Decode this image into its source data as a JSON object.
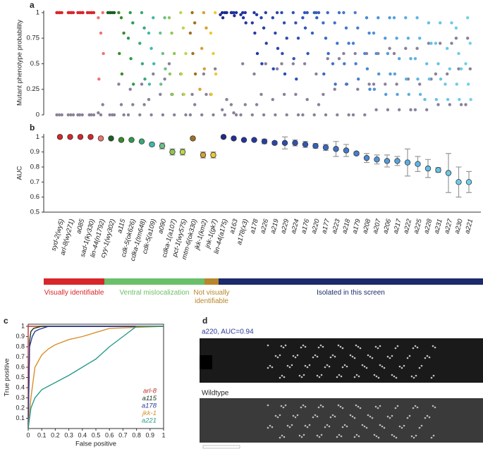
{
  "chart_data": [
    {
      "type": "strip",
      "label": "a",
      "ylabel": "Mutant phenotype probability",
      "ylim": [
        0,
        1.02
      ],
      "yticks": [
        0,
        0.25,
        0.5,
        0.75,
        1
      ],
      "wildtype_color": "#8a809a",
      "points": [
        {
          "mutant": [
            1,
            1,
            1,
            1,
            1
          ],
          "wildtype": [
            0,
            0,
            0
          ]
        },
        {
          "mutant": [
            1,
            1,
            1,
            1,
            1
          ],
          "wildtype": [
            0,
            0,
            0
          ]
        },
        {
          "mutant": [
            1,
            1,
            1,
            1,
            1
          ],
          "wildtype": [
            0,
            0,
            0
          ]
        },
        {
          "mutant": [
            1,
            1,
            1,
            1,
            1
          ],
          "wildtype": [
            0,
            0,
            0
          ]
        },
        {
          "mutant": [
            1,
            0.95,
            0.8,
            0.6,
            0.35
          ],
          "wildtype": [
            0.1,
            0.02,
            0
          ]
        },
        {
          "mutant": [
            1,
            1,
            1,
            1,
            1
          ],
          "wildtype": [
            0,
            0,
            0
          ]
        },
        {
          "mutant": [
            1,
            0.95,
            0.8,
            0.6,
            0.4
          ],
          "wildtype": [
            0.3,
            0.1,
            0
          ]
        },
        {
          "mutant": [
            1,
            0.9,
            0.75,
            0.55,
            0.3
          ],
          "wildtype": [
            0.25,
            0.1,
            0
          ]
        },
        {
          "mutant": [
            1,
            0.85,
            0.7,
            0.5,
            0.35
          ],
          "wildtype": [
            0.3,
            0.1,
            0
          ]
        },
        {
          "mutant": [
            0.95,
            0.8,
            0.65,
            0.5,
            0.3
          ],
          "wildtype": [
            0.4,
            0.15,
            0
          ]
        },
        {
          "mutant": [
            0.95,
            0.8,
            0.6,
            0.45,
            0.3
          ],
          "wildtype": [
            0.35,
            0.2,
            0
          ]
        },
        {
          "mutant": [
            0.95,
            0.8,
            0.6,
            0.4,
            0.2
          ],
          "wildtype": [
            0.5,
            0.2,
            0
          ]
        },
        {
          "mutant": [
            1,
            0.85,
            0.6,
            0.4,
            0.2
          ],
          "wildtype": [
            0.4,
            0.2,
            0
          ]
        },
        {
          "mutant": [
            1,
            0.9,
            0.8,
            0.6,
            0.4
          ],
          "wildtype": [
            0.2,
            0.1,
            0
          ]
        },
        {
          "mutant": [
            1,
            0.85,
            0.65,
            0.45,
            0.25
          ],
          "wildtype": [
            0.4,
            0.2,
            0
          ]
        },
        {
          "mutant": [
            1,
            0.8,
            0.6,
            0.4,
            0.2
          ],
          "wildtype": [
            0.45,
            0.2,
            0
          ]
        },
        {
          "mutant": [
            1,
            1,
            1,
            0.98,
            0.95
          ],
          "wildtype": [
            0.15,
            0.05,
            0
          ]
        },
        {
          "mutant": [
            1,
            1,
            1,
            1,
            0.97
          ],
          "wildtype": [
            0.1,
            0.02,
            0
          ]
        },
        {
          "mutant": [
            1,
            1,
            0.98,
            0.95,
            0.9
          ],
          "wildtype": [
            0.5,
            0.1,
            0
          ]
        },
        {
          "mutant": [
            1,
            0.98,
            0.9,
            0.8,
            0.6
          ],
          "wildtype": [
            0.4,
            0.1,
            0
          ]
        },
        {
          "mutant": [
            1,
            0.95,
            0.85,
            0.7,
            0.5
          ],
          "wildtype": [
            0.5,
            0.2,
            0
          ]
        },
        {
          "mutant": [
            1,
            0.95,
            0.8,
            0.65,
            0.45
          ],
          "wildtype": [
            0.45,
            0.15,
            0
          ]
        },
        {
          "mutant": [
            1,
            0.9,
            0.75,
            0.6,
            0.4
          ],
          "wildtype": [
            0.5,
            0.2,
            0
          ]
        },
        {
          "mutant": [
            1,
            0.9,
            0.75,
            0.55,
            0.35
          ],
          "wildtype": [
            0.5,
            0.2,
            0
          ]
        },
        {
          "mutant": [
            1,
            1,
            0.95,
            0.85,
            0.6
          ],
          "wildtype": [
            0.5,
            0.15,
            0
          ]
        },
        {
          "mutant": [
            1,
            1,
            1,
            0.95,
            0.8
          ],
          "wildtype": [
            0.4,
            0.1,
            0
          ]
        },
        {
          "mutant": [
            1,
            0.9,
            0.75,
            0.6,
            0.4
          ],
          "wildtype": [
            0.55,
            0.2,
            0
          ]
        },
        {
          "mutant": [
            1,
            0.9,
            0.7,
            0.5,
            0.3
          ],
          "wildtype": [
            0.55,
            0.25,
            0
          ]
        },
        {
          "mutant": [
            1,
            0.85,
            0.7,
            0.5,
            0.3
          ],
          "wildtype": [
            0.6,
            0.3,
            0
          ]
        },
        {
          "mutant": [
            1,
            0.85,
            0.7,
            0.5,
            0.35
          ],
          "wildtype": [
            0.6,
            0.25,
            0
          ]
        },
        {
          "mutant": [
            0.95,
            0.8,
            0.6,
            0.45,
            0.25
          ],
          "wildtype": [
            0.6,
            0.3,
            0
          ]
        },
        {
          "mutant": [
            0.95,
            0.8,
            0.6,
            0.4,
            0.25
          ],
          "wildtype": [
            0.6,
            0.3,
            0.05
          ]
        },
        {
          "mutant": [
            0.95,
            0.75,
            0.6,
            0.4,
            0.2
          ],
          "wildtype": [
            0.65,
            0.3,
            0.05
          ]
        },
        {
          "mutant": [
            0.95,
            0.75,
            0.55,
            0.4,
            0.2
          ],
          "wildtype": [
            0.6,
            0.3,
            0.05
          ]
        },
        {
          "mutant": [
            0.95,
            0.75,
            0.55,
            0.35,
            0.2
          ],
          "wildtype": [
            0.65,
            0.35,
            0.05
          ]
        },
        {
          "mutant": [
            0.95,
            0.75,
            0.55,
            0.35,
            0.2
          ],
          "wildtype": [
            0.65,
            0.3,
            0.05
          ]
        },
        {
          "mutant": [
            0.9,
            0.7,
            0.5,
            0.35,
            0.15
          ],
          "wildtype": [
            0.7,
            0.35,
            0.05
          ]
        },
        {
          "mutant": [
            0.9,
            0.7,
            0.5,
            0.35,
            0.15
          ],
          "wildtype": [
            0.7,
            0.4,
            0.1
          ]
        },
        {
          "mutant": [
            0.9,
            0.65,
            0.45,
            0.3,
            0.15
          ],
          "wildtype": [
            0.7,
            0.4,
            0.1
          ]
        },
        {
          "mutant": [
            0.85,
            0.6,
            0.45,
            0.3,
            0.15
          ],
          "wildtype": [
            0.75,
            0.45,
            0.1
          ]
        },
        {
          "mutant": [
            0.95,
            0.7,
            0.5,
            0.3,
            0.15
          ],
          "wildtype": [
            0.75,
            0.45,
            0.1
          ]
        }
      ]
    },
    {
      "type": "dot",
      "label": "b",
      "ylabel": "AUC",
      "ylim": [
        0.5,
        1.02
      ],
      "yticks": [
        0.5,
        0.6,
        0.7,
        0.8,
        0.9,
        1
      ],
      "categories": [
        "syd-2(wy5)",
        "arl-8(wy271)",
        "a085",
        "sad-1(ky330)",
        "lin-44(n1792)",
        "cyy-1(wy302)",
        "a115",
        "cdk-5(ok626)",
        "cdka-1(tm648)",
        "cdk-5(a109)",
        "a090",
        "cdka-1(a107)",
        "pct-1(wy575)",
        "mtm-6(ok330)",
        "jkk-1(km2)",
        "jnk-1(gk7)",
        "lin-44(a175)",
        "a163",
        "a178(x3)",
        "a178",
        "a226",
        "a219",
        "a229",
        "a224",
        "a176",
        "a220",
        "a177",
        "a223",
        "a218",
        "a179",
        "a208",
        "a207",
        "a206",
        "a217",
        "a222",
        "a225",
        "a228",
        "a231",
        "a227",
        "a230",
        "a221"
      ],
      "values": [
        1,
        1,
        1,
        1,
        0.99,
        0.99,
        0.98,
        0.98,
        0.97,
        0.95,
        0.94,
        0.9,
        0.9,
        0.99,
        0.88,
        0.88,
        1,
        0.99,
        0.98,
        0.98,
        0.97,
        0.96,
        0.96,
        0.96,
        0.95,
        0.94,
        0.93,
        0.92,
        0.91,
        0.89,
        0.86,
        0.85,
        0.84,
        0.84,
        0.83,
        0.82,
        0.79,
        0.78,
        0.76,
        0.7,
        0.7
      ],
      "errors": [
        0.005,
        0.005,
        0.005,
        0.005,
        0.005,
        0.005,
        0.005,
        0.005,
        0.005,
        0.01,
        0.02,
        0.02,
        0.02,
        0.005,
        0.02,
        0.02,
        0.005,
        0.005,
        0.005,
        0.005,
        0.015,
        0.01,
        0.04,
        0.02,
        0.02,
        0.015,
        0.02,
        0.05,
        0.04,
        0.01,
        0.03,
        0.03,
        0.04,
        0.03,
        0.09,
        0.05,
        0.06,
        0.015,
        0.13,
        0.1,
        0.07
      ],
      "colors": [
        "#d7262a",
        "#d7262a",
        "#d7262a",
        "#d7262a",
        "#f07272",
        "#1a5e20",
        "#3a8a2a",
        "#2e9a4a",
        "#3aa878",
        "#40b8b0",
        "#6ac08a",
        "#8ec850",
        "#b8d84a",
        "#a07020",
        "#d8a030",
        "#f0c830",
        "#1c2a8a",
        "#1f2f9a",
        "#22339e",
        "#2438a2",
        "#2640a8",
        "#2a46ac",
        "#2c4cb0",
        "#2e52b4",
        "#3058b8",
        "#3460bc",
        "#3a6ac4",
        "#3e72c8",
        "#4278cc",
        "#467ed0",
        "#4a88d4",
        "#4e92d8",
        "#529adc",
        "#56a4de",
        "#5aaee0",
        "#5eb6e2",
        "#62bee4",
        "#66c4e6",
        "#6ac8e8",
        "#6ccce8",
        "#70d0ea"
      ],
      "groups": [
        {
          "label": "Visually identifiable",
          "color": "#d7262a"
        },
        {
          "label": "Ventral mislocalization",
          "color": "#6abf6a"
        },
        {
          "label": "Not visually identifiable",
          "color": "#b8862b"
        },
        {
          "label": "Isolated in this screen",
          "color": "#1c2a6a"
        }
      ]
    },
    {
      "type": "line",
      "label": "c",
      "xlabel": "False positive",
      "ylabel": "True positive",
      "xlim": [
        0,
        1
      ],
      "ylim": [
        0,
        1
      ],
      "xticks": [
        0,
        0.1,
        0.2,
        0.3,
        0.4,
        0.5,
        0.6,
        0.7,
        0.8,
        0.9,
        1
      ],
      "yticks": [
        0.1,
        0.2,
        0.3,
        0.4,
        0.5,
        0.6,
        0.7,
        0.8,
        0.9,
        1
      ],
      "series": [
        {
          "name": "arl-8",
          "color": "#c0302a",
          "x": [
            0,
            0,
            1
          ],
          "y": [
            0,
            1,
            1
          ]
        },
        {
          "name": "a115",
          "color": "#1a3a1a",
          "x": [
            0,
            0.01,
            0.02,
            0.04,
            0.1,
            1
          ],
          "y": [
            0,
            0.85,
            0.95,
            0.98,
            1,
            1
          ]
        },
        {
          "name": "a178",
          "color": "#2a3a9a",
          "x": [
            0,
            0.01,
            0.03,
            0.05,
            0.08,
            0.15,
            1
          ],
          "y": [
            0,
            0.8,
            0.9,
            0.95,
            0.97,
            1,
            1
          ]
        },
        {
          "name": "jkk-1",
          "color": "#d8902a",
          "x": [
            0,
            0.02,
            0.05,
            0.1,
            0.15,
            0.2,
            0.3,
            0.4,
            0.5,
            0.6,
            1
          ],
          "y": [
            0,
            0.3,
            0.6,
            0.72,
            0.78,
            0.82,
            0.87,
            0.9,
            0.94,
            0.98,
            1
          ]
        },
        {
          "name": "a221",
          "color": "#2a9a8a",
          "x": [
            0,
            0.02,
            0.05,
            0.1,
            0.2,
            0.3,
            0.4,
            0.5,
            0.6,
            0.7,
            0.8,
            1
          ],
          "y": [
            0,
            0.2,
            0.3,
            0.38,
            0.45,
            0.52,
            0.6,
            0.68,
            0.8,
            0.9,
            1,
            1
          ]
        }
      ]
    }
  ],
  "panel_d": {
    "label": "d",
    "caption": "a220, AUC=0.94",
    "subcaption": "Wildtype"
  }
}
